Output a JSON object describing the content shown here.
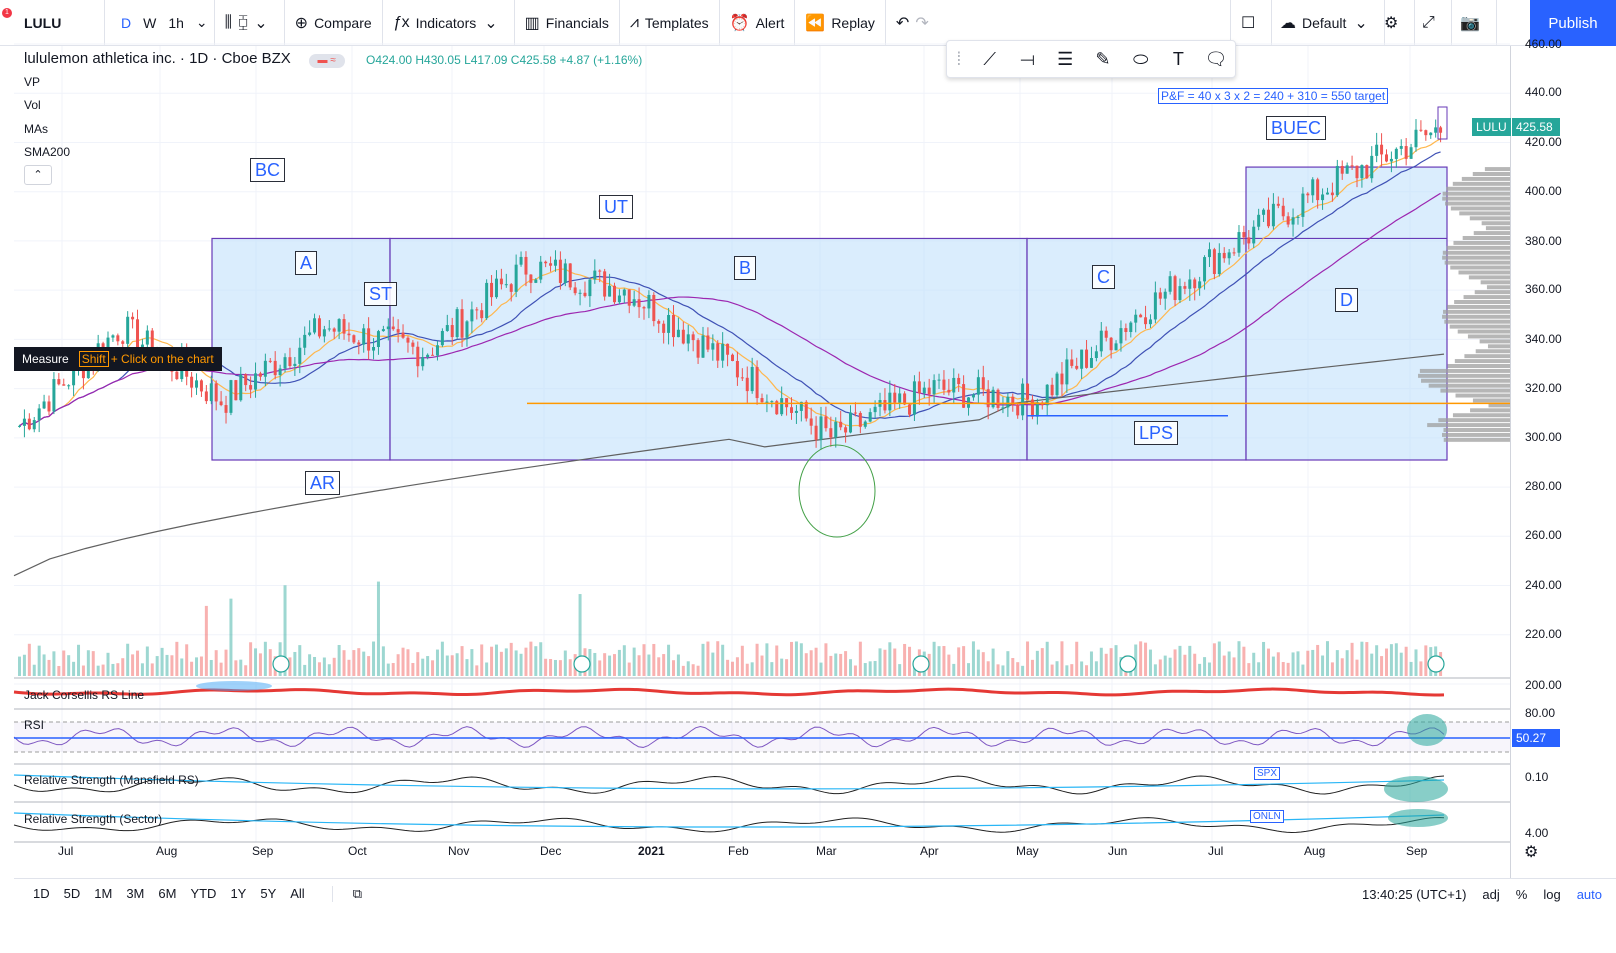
{
  "toolbar": {
    "symbol": "LULU",
    "intervals": [
      "D",
      "W",
      "1h"
    ],
    "compare": "Compare",
    "indicators": "Indicators",
    "financials": "Financials",
    "templates": "Templates",
    "alert": "Alert",
    "replay": "Replay",
    "layout": "Default",
    "publish": "Publish",
    "notification_count": "1"
  },
  "legend": {
    "title": "lululemon athletica inc. · 1D · Cboe BZX",
    "ohlc": "O424.00 H430.05 L417.09 C425.58 +4.87 (+1.16%)",
    "indicators": [
      "VP",
      "Vol",
      "MAs",
      "SMA200"
    ]
  },
  "measure_tooltip": {
    "label": "Measure",
    "key": "Shift",
    "hint": "+ Click on the chart"
  },
  "annotations": {
    "pf_target": "P&F = 40 x 3 x 2 = 240 + 310 = 550 target",
    "wyckoff_labels": [
      "BC",
      "A",
      "ST",
      "AR",
      "UT",
      "B",
      "C",
      "D",
      "LPS",
      "BUEC"
    ]
  },
  "price_scale": {
    "ticks": [
      "460.00",
      "440.00",
      "420.00",
      "400.00",
      "380.00",
      "360.00",
      "340.00",
      "320.00",
      "300.00",
      "280.00",
      "260.00",
      "240.00",
      "220.00",
      "200.00"
    ],
    "last_price": "425.58",
    "symbol_badge": "LULU",
    "rsi_value": "50.27",
    "rsi_tick": "80.00",
    "mansfield_tick": "0.10",
    "sector_tick": "4.00"
  },
  "panes": {
    "rs_line": "Jack Corsellis RS Line",
    "rsi": "RSI",
    "mansfield": "Relative Strength (Mansfield RS)",
    "sector": "Relative Strength (Sector)",
    "spx_tag": "SPX",
    "onln_tag": "ONLN"
  },
  "time_axis": [
    "Jul",
    "Aug",
    "Sep",
    "Oct",
    "Nov",
    "Dec",
    "2021",
    "Feb",
    "Mar",
    "Apr",
    "May",
    "Jun",
    "Jul",
    "Aug",
    "Sep"
  ],
  "bottom": {
    "ranges": [
      "1D",
      "5D",
      "1M",
      "3M",
      "6M",
      "YTD",
      "1Y",
      "5Y",
      "All"
    ],
    "clock": "13:40:25 (UTC+1)",
    "adj": "adj",
    "pct": "%",
    "log": "log",
    "auto": "auto"
  },
  "colors": {
    "accent": "#2962ff",
    "up": "#26a69a",
    "down": "#ef5350",
    "range_box": "#bbdefb",
    "level": "#ff9800"
  },
  "chart_data": {
    "type": "candlestick",
    "ylim": [
      260,
      460
    ],
    "x": [
      "2020-07",
      "2020-08",
      "2020-09",
      "2020-10",
      "2020-11",
      "2020-12",
      "2021-01",
      "2021-02",
      "2021-03",
      "2021-04",
      "2021-05",
      "2021-06",
      "2021-07",
      "2021-08",
      "2021-09"
    ],
    "close": [
      305,
      345,
      315,
      345,
      335,
      370,
      360,
      330,
      300,
      320,
      315,
      350,
      380,
      405,
      425.58
    ],
    "support_level": 314,
    "trading_range": [
      291,
      381
    ]
  }
}
